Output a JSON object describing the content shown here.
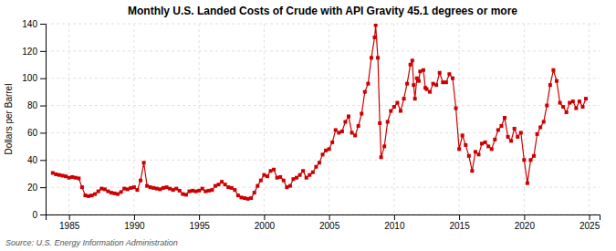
{
  "chart_data": {
    "type": "line",
    "title": "Monthly U.S. Landed Costs of Crude with API Gravity 45.1 degrees or more",
    "ylabel": "Dollars per Barrel",
    "annotations": [
      "Source: U.S. Energy Information Administration"
    ],
    "color": "#cc0000",
    "marker": "square",
    "line_style": "solid",
    "grid": true,
    "xlim": [
      1983.2,
      2025.8
    ],
    "xticks": [
      1985,
      1990,
      1995,
      2000,
      2005,
      2010,
      2015,
      2020,
      2025
    ],
    "ylim": [
      0,
      140
    ],
    "yticks": [
      0,
      20,
      40,
      60,
      80,
      100,
      120,
      140
    ],
    "x": [
      1983.75,
      1984.0,
      1984.25,
      1984.5,
      1984.75,
      1985.0,
      1985.25,
      1985.5,
      1985.75,
      1986.0,
      1986.25,
      1986.5,
      1986.75,
      1987.0,
      1987.25,
      1987.5,
      1987.75,
      1988.0,
      1988.25,
      1988.5,
      1988.75,
      1989.0,
      1989.25,
      1989.5,
      1989.75,
      1990.0,
      1990.25,
      1990.5,
      1990.75,
      1991.0,
      1991.25,
      1991.5,
      1991.75,
      1992.0,
      1992.25,
      1992.5,
      1992.75,
      1993.0,
      1993.25,
      1993.5,
      1993.75,
      1994.0,
      1994.25,
      1994.5,
      1994.75,
      1995.0,
      1995.25,
      1995.5,
      1995.75,
      1996.0,
      1996.25,
      1996.5,
      1996.75,
      1997.0,
      1997.25,
      1997.5,
      1997.75,
      1998.0,
      1998.25,
      1998.5,
      1998.75,
      1999.0,
      1999.25,
      1999.5,
      1999.75,
      2000.0,
      2000.25,
      2000.5,
      2000.75,
      2001.0,
      2001.25,
      2001.5,
      2001.75,
      2002.0,
      2002.25,
      2002.5,
      2002.75,
      2003.0,
      2003.25,
      2003.5,
      2003.75,
      2004.0,
      2004.25,
      2004.5,
      2004.75,
      2005.0,
      2005.25,
      2005.5,
      2005.75,
      2006.0,
      2006.25,
      2006.5,
      2006.75,
      2007.0,
      2007.25,
      2007.5,
      2007.75,
      2008.0,
      2008.25,
      2008.5,
      2008.58,
      2008.75,
      2008.9,
      2009.0,
      2009.25,
      2009.5,
      2009.75,
      2010.0,
      2010.25,
      2010.5,
      2010.75,
      2011.0,
      2011.25,
      2011.4,
      2011.5,
      2011.6,
      2011.75,
      2011.9,
      2012.0,
      2012.25,
      2012.4,
      2012.5,
      2012.75,
      2013.0,
      2013.25,
      2013.5,
      2013.75,
      2014.0,
      2014.25,
      2014.5,
      2014.75,
      2015.0,
      2015.25,
      2015.5,
      2015.75,
      2016.0,
      2016.25,
      2016.5,
      2016.75,
      2017.0,
      2017.25,
      2017.5,
      2017.75,
      2018.0,
      2018.25,
      2018.5,
      2018.75,
      2019.0,
      2019.25,
      2019.5,
      2019.75,
      2020.0,
      2020.25,
      2020.5,
      2020.75,
      2021.0,
      2021.25,
      2021.5,
      2021.75,
      2022.0,
      2022.25,
      2022.5,
      2022.75,
      2023.0,
      2023.25,
      2023.5,
      2023.75,
      2024.0,
      2024.25,
      2024.5,
      2024.75
    ],
    "values": [
      30.5,
      29.5,
      29.0,
      28.5,
      28.0,
      27.0,
      27.5,
      27.0,
      26.5,
      20.0,
      14.0,
      13.5,
      14.0,
      15.0,
      17.0,
      19.0,
      18.5,
      17.0,
      16.0,
      15.5,
      15.0,
      16.5,
      19.0,
      18.5,
      19.5,
      20.0,
      18.0,
      25.0,
      38.0,
      21.0,
      20.0,
      19.5,
      19.0,
      18.5,
      19.5,
      20.0,
      19.0,
      18.0,
      19.0,
      17.5,
      15.0,
      14.5,
      17.0,
      17.5,
      17.0,
      17.5,
      19.0,
      17.0,
      17.5,
      18.0,
      21.0,
      22.0,
      24.0,
      22.0,
      20.0,
      19.5,
      18.0,
      14.0,
      12.5,
      12.0,
      11.5,
      12.0,
      16.0,
      21.0,
      25.0,
      29.0,
      28.0,
      32.0,
      33.0,
      27.0,
      27.5,
      25.0,
      20.0,
      21.0,
      26.0,
      27.0,
      29.0,
      32.0,
      27.0,
      29.0,
      31.0,
      35.0,
      38.0,
      44.0,
      47.0,
      48.0,
      53.0,
      62.0,
      60.0,
      61.0,
      68.0,
      72.0,
      60.0,
      58.0,
      65.0,
      74.0,
      90.0,
      96.0,
      115.0,
      130.0,
      139.0,
      115.0,
      67.0,
      42.0,
      50.0,
      68.0,
      76.0,
      79.0,
      82.0,
      76.0,
      85.0,
      96.0,
      110.0,
      113.0,
      95.0,
      85.0,
      100.0,
      98.0,
      105.0,
      106.0,
      93.0,
      92.0,
      90.0,
      96.0,
      95.0,
      104.0,
      97.0,
      97.0,
      103.0,
      100.0,
      78.0,
      48.0,
      58.0,
      51.0,
      43.0,
      32.0,
      46.0,
      44.0,
      52.0,
      53.0,
      50.0,
      48.0,
      55.0,
      62.0,
      65.0,
      71.0,
      57.0,
      54.0,
      63.0,
      57.0,
      60.0,
      40.0,
      23.0,
      40.0,
      43.0,
      59.0,
      64.0,
      68.0,
      80.0,
      95.0,
      106.0,
      98.0,
      82.0,
      79.0,
      75.0,
      82.0,
      83.0,
      78.0,
      83.0,
      79.0,
      85.0
    ]
  }
}
